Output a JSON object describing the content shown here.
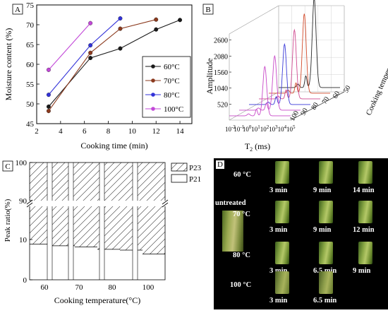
{
  "panel_labels": {
    "a": "A",
    "b": "B",
    "c": "C",
    "d": "D"
  },
  "chart_data": [
    {
      "panel": "A",
      "type": "line",
      "xlabel": "Cooking time (min)",
      "ylabel": "Moisture content  (%)",
      "xlim": [
        2,
        15
      ],
      "ylim": [
        45,
        75
      ],
      "xticks": [
        2,
        4,
        6,
        8,
        10,
        12,
        14
      ],
      "yticks": [
        45,
        50,
        55,
        60,
        65,
        70,
        75
      ],
      "legend_position": "right",
      "series": [
        {
          "name": "60°C",
          "color": "#1a1a1a",
          "x": [
            3,
            6.5,
            9,
            12,
            14
          ],
          "y": [
            49.3,
            61.6,
            64.0,
            68.8,
            71.2
          ]
        },
        {
          "name": "70°C",
          "color": "#8b3a1e",
          "x": [
            3,
            6.5,
            9,
            12
          ],
          "y": [
            48.2,
            62.9,
            69.0,
            71.3
          ]
        },
        {
          "name": "80°C",
          "color": "#3232d8",
          "x": [
            3,
            6.5,
            9
          ],
          "y": [
            52.3,
            64.8,
            71.6
          ]
        },
        {
          "name": "100°C",
          "color": "#c248d8",
          "x": [
            3,
            6.5
          ],
          "y": [
            58.6,
            70.4
          ]
        }
      ]
    },
    {
      "panel": "B",
      "type": "line",
      "xlabel": "T",
      "xlabel_sub": "2",
      "xlabel_unit": " (ms)",
      "ylabel": "Amplitude",
      "zlabel": "Cooking temperature (°C)",
      "xtick_base": "10",
      "xtick_exponents": [
        "-2",
        "-1",
        "0",
        "1",
        "2",
        "3",
        "4",
        "5"
      ],
      "yticks": [
        "520",
        "1040",
        "1560",
        "2080",
        "2600"
      ],
      "ztick_labels": [
        "50",
        "60",
        "70",
        "80",
        "90",
        "100"
      ],
      "series": [
        {
          "name": "50",
          "color": "#2a2a2a",
          "peak_value": 2900
        },
        {
          "name": "60",
          "color": "#d24a2a",
          "peak_value": 2580
        },
        {
          "name": "70",
          "color": "#d04a90",
          "peak_value": 2240
        },
        {
          "name": "80",
          "color": "#3a3ad8",
          "peak_value": 1960
        },
        {
          "name": "90",
          "color": "#c848c8",
          "peak_value": 1760
        },
        {
          "name": "100",
          "color": "#c848c8",
          "peak_value": 1600
        }
      ]
    },
    {
      "panel": "C",
      "type": "bar",
      "stacked": true,
      "xlabel": "Cooking temperature(°C)",
      "ylabel": "Peak ratio(%)",
      "categories": [
        "60",
        "70",
        "80",
        "100"
      ],
      "yticks_lower": [
        "0",
        "10"
      ],
      "yticks_upper": [
        "90",
        "100"
      ],
      "legend": [
        "P23",
        "P21"
      ],
      "p21_steps": [
        9.0,
        8.6,
        8.3,
        7.7,
        7.5,
        6.5
      ],
      "p23_steps": [
        91.0,
        91.4,
        91.7,
        92.3,
        92.5,
        93.5
      ]
    }
  ],
  "panel_d": {
    "untreated": "untreated",
    "rows": [
      {
        "temp": "60 °C",
        "times": [
          "3 min",
          "9 min",
          "14 min"
        ]
      },
      {
        "temp": "70 °C",
        "times": [
          "3 min",
          "9 min",
          "12 min"
        ]
      },
      {
        "temp": "80 °C",
        "times": [
          "3 min",
          "6.5 min",
          "9 min"
        ]
      },
      {
        "temp": "100 °C",
        "times": [
          "3 min",
          "6.5 min"
        ]
      }
    ]
  }
}
